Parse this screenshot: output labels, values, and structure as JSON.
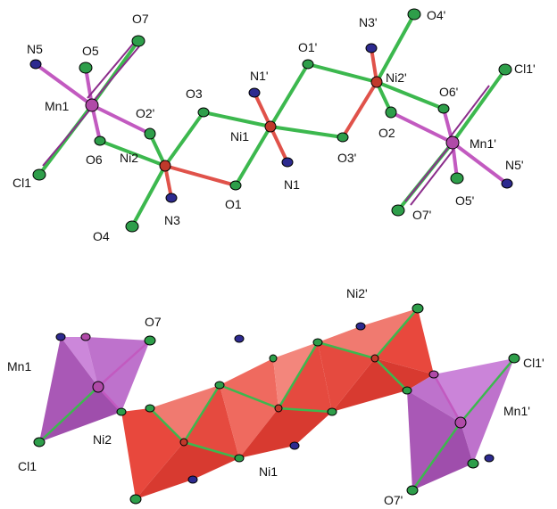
{
  "colors": {
    "ni": "#c0392b",
    "mn": "#b04aa8",
    "o": "#2e9e4a",
    "n": "#2d2a8f",
    "cl": "#2e9e4a",
    "bond_ni_o": "#e0524a",
    "bond_o": "#3cb84e",
    "bond_mn": "#c25ac0",
    "ni_poly_dark": "#e8483d",
    "ni_poly_light": "#f07a70",
    "mn_poly_dark": "#a24ab0",
    "mn_poly_light": "#c77ad6"
  },
  "top_labels": {
    "n5": "N5",
    "o5": "O5",
    "o7": "O7",
    "mn1": "Mn1",
    "o2p": "O2'",
    "o6": "O6",
    "ni2": "Ni2",
    "cl1": "Cl1",
    "o4": "O4",
    "n3": "N3",
    "o3": "O3",
    "o1": "O1",
    "n1p": "N1'",
    "ni1": "Ni1",
    "n1": "N1",
    "o1p": "O1'",
    "o3p": "O3'",
    "n3p": "N3'",
    "o4p": "O4'",
    "ni2p": "Ni2'",
    "o2": "O2",
    "o6p": "O6'",
    "cl1p": "Cl1'",
    "mn1p": "Mn1'",
    "n5p": "N5'",
    "o5p": "O5'",
    "o7p": "O7'"
  },
  "bottom_labels": {
    "o7": "O7",
    "mn1": "Mn1",
    "cl1": "Cl1",
    "ni2": "Ni2",
    "ni1": "Ni1",
    "ni2p": "Ni2'",
    "cl1p": "Cl1'",
    "mn1p": "Mn1'",
    "o7p": "O7'"
  }
}
